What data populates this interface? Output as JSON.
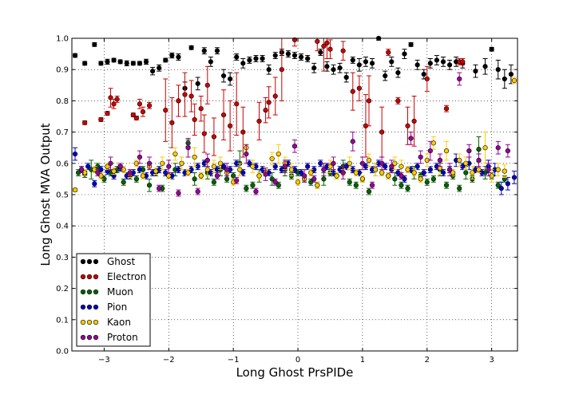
{
  "chart_data": {
    "type": "scatter",
    "xlabel": "Long Ghost PrsPIDe",
    "ylabel": "Long Ghost MVA Output",
    "xlim": [
      -3.5,
      3.4
    ],
    "ylim": [
      0.0,
      1.0
    ],
    "xticks": [
      "−3",
      "−2",
      "−1",
      "0",
      "1",
      "2",
      "3"
    ],
    "yticks": [
      "0.0",
      "0.1",
      "0.2",
      "0.3",
      "0.4",
      "0.5",
      "0.6",
      "0.7",
      "0.8",
      "0.9",
      "1.0"
    ],
    "grid": true,
    "legend_position": "lower-left",
    "series": [
      {
        "name": "Ghost",
        "color": "#000000",
        "x": [
          -3.45,
          -3.3,
          -3.15,
          -3.05,
          -2.95,
          -2.85,
          -2.75,
          -2.65,
          -2.55,
          -2.45,
          -2.35,
          -2.25,
          -2.15,
          -2.05,
          -1.95,
          -1.85,
          -1.75,
          -1.65,
          -1.55,
          -1.45,
          -1.35,
          -1.25,
          -1.15,
          -1.05,
          -0.95,
          -0.85,
          -0.75,
          -0.65,
          -0.55,
          -0.45,
          -0.35,
          -0.25,
          -0.15,
          -0.05,
          0.05,
          0.15,
          0.25,
          0.35,
          0.45,
          0.55,
          0.65,
          0.75,
          0.85,
          0.95,
          1.05,
          1.15,
          1.25,
          1.35,
          1.45,
          1.55,
          1.65,
          1.75,
          1.85,
          1.95,
          2.05,
          2.15,
          2.25,
          2.35,
          2.45,
          2.55,
          2.75,
          2.9,
          3.0,
          3.1,
          3.2,
          3.3
        ],
        "y": [
          0.945,
          0.92,
          0.98,
          0.92,
          0.925,
          0.93,
          0.925,
          0.92,
          0.92,
          0.92,
          0.925,
          0.895,
          0.905,
          0.93,
          0.945,
          0.94,
          0.84,
          0.97,
          0.855,
          0.96,
          0.925,
          0.96,
          0.88,
          0.87,
          0.94,
          0.92,
          0.93,
          0.935,
          0.935,
          0.9,
          0.945,
          0.955,
          0.95,
          0.945,
          0.94,
          0.935,
          0.905,
          0.955,
          0.91,
          0.9,
          0.905,
          0.875,
          0.93,
          0.915,
          0.925,
          0.92,
          1.0,
          0.88,
          0.925,
          0.89,
          0.95,
          0.98,
          0.915,
          0.885,
          0.92,
          0.93,
          0.925,
          0.915,
          0.925,
          0.92,
          0.895,
          0.91,
          0.965,
          0.9,
          0.87,
          0.885
        ],
        "err": [
          0.006,
          0.006,
          0.006,
          0.006,
          0.008,
          0.006,
          0.006,
          0.008,
          0.006,
          0.006,
          0.008,
          0.012,
          0.01,
          0.006,
          0.008,
          0.01,
          0.02,
          0.006,
          0.02,
          0.01,
          0.015,
          0.01,
          0.02,
          0.02,
          0.01,
          0.015,
          0.01,
          0.01,
          0.01,
          0.015,
          0.01,
          0.01,
          0.01,
          0.01,
          0.01,
          0.01,
          0.015,
          0.01,
          0.015,
          0.015,
          0.015,
          0.015,
          0.01,
          0.02,
          0.015,
          0.015,
          0.006,
          0.015,
          0.015,
          0.015,
          0.015,
          0.006,
          0.015,
          0.015,
          0.015,
          0.015,
          0.015,
          0.015,
          0.015,
          0.015,
          0.02,
          0.025,
          0.006,
          0.03,
          0.03,
          0.03
        ]
      },
      {
        "name": "Electron",
        "color": "#cc0000",
        "x": [
          -3.3,
          -3.05,
          -2.95,
          -2.9,
          -2.85,
          -2.8,
          -2.55,
          -2.5,
          -2.45,
          -2.4,
          -2.3,
          -2.05,
          -1.95,
          -1.85,
          -1.75,
          -1.65,
          -1.6,
          -1.5,
          -1.45,
          -1.4,
          -1.3,
          -1.15,
          -1.05,
          -0.95,
          -0.85,
          -0.6,
          -0.5,
          -0.45,
          -0.35,
          -0.25,
          -0.05,
          0.3,
          0.4,
          0.45,
          0.5,
          0.7,
          0.85,
          0.95,
          1.05,
          1.1,
          1.3,
          1.4,
          1.55,
          1.7,
          1.8,
          2.0,
          2.3,
          2.5,
          2.55
        ],
        "y": [
          0.73,
          0.74,
          0.76,
          0.81,
          0.79,
          0.805,
          0.755,
          0.745,
          0.79,
          0.765,
          0.785,
          0.77,
          0.73,
          0.8,
          0.82,
          0.815,
          0.74,
          0.775,
          0.695,
          0.85,
          0.685,
          0.755,
          0.72,
          0.79,
          0.7,
          0.735,
          0.77,
          0.795,
          0.815,
          0.9,
          0.995,
          0.99,
          0.975,
          0.985,
          0.965,
          0.96,
          0.83,
          0.84,
          0.72,
          0.8,
          0.7,
          0.955,
          0.8,
          0.72,
          0.735,
          0.87,
          0.775,
          0.925,
          0.925
        ],
        "err": [
          0.006,
          0.006,
          0.006,
          0.03,
          0.015,
          0.01,
          0.006,
          0.006,
          0.015,
          0.015,
          0.01,
          0.1,
          0.08,
          0.05,
          0.07,
          0.05,
          0.05,
          0.04,
          0.06,
          0.06,
          0.06,
          0.08,
          0.08,
          0.1,
          0.08,
          0.06,
          0.04,
          0.05,
          0.06,
          0.1,
          0.02,
          0.03,
          0.08,
          0.05,
          0.03,
          0.03,
          0.06,
          0.04,
          0.1,
          0.08,
          0.08,
          0.01,
          0.01,
          0.06,
          0.08,
          0.04,
          0.01,
          0.01,
          0.01
        ]
      },
      {
        "name": "Muon",
        "color": "#006600",
        "x": [
          -3.4,
          -3.3,
          -3.2,
          -3.1,
          -3.0,
          -2.9,
          -2.8,
          -2.7,
          -2.6,
          -2.5,
          -2.4,
          -2.3,
          -2.2,
          -2.1,
          -2.0,
          -1.9,
          -1.8,
          -1.7,
          -1.6,
          -1.5,
          -1.4,
          -1.3,
          -1.2,
          -1.1,
          -1.0,
          -0.9,
          -0.8,
          -0.7,
          -0.6,
          -0.5,
          -0.4,
          -0.3,
          -0.2,
          -0.1,
          0.0,
          0.1,
          0.2,
          0.3,
          0.4,
          0.5,
          0.6,
          0.7,
          0.8,
          0.9,
          1.0,
          1.1,
          1.2,
          1.3,
          1.4,
          1.5,
          1.6,
          1.7,
          1.8,
          1.9,
          2.0,
          2.1,
          2.2,
          2.3,
          2.4,
          2.5,
          2.6,
          2.7,
          2.8,
          2.9,
          3.0,
          3.1,
          3.2
        ],
        "y": [
          0.57,
          0.565,
          0.58,
          0.59,
          0.55,
          0.57,
          0.58,
          0.54,
          0.56,
          0.55,
          0.58,
          0.53,
          0.57,
          0.52,
          0.56,
          0.58,
          0.6,
          0.665,
          0.55,
          0.56,
          0.57,
          0.54,
          0.58,
          0.55,
          0.56,
          0.6,
          0.52,
          0.53,
          0.56,
          0.57,
          0.55,
          0.53,
          0.58,
          0.56,
          0.57,
          0.55,
          0.54,
          0.53,
          0.55,
          0.57,
          0.56,
          0.59,
          0.54,
          0.53,
          0.55,
          0.51,
          0.58,
          0.57,
          0.56,
          0.55,
          0.53,
          0.52,
          0.57,
          0.56,
          0.54,
          0.55,
          0.58,
          0.53,
          0.56,
          0.52,
          0.57,
          0.55,
          0.645,
          0.57,
          0.56,
          0.53,
          0.55
        ],
        "err": [
          0.01,
          0.01,
          0.03,
          0.01,
          0.01,
          0.01,
          0.01,
          0.01,
          0.01,
          0.01,
          0.01,
          0.02,
          0.01,
          0.01,
          0.01,
          0.02,
          0.02,
          0.01,
          0.02,
          0.01,
          0.02,
          0.01,
          0.02,
          0.01,
          0.01,
          0.04,
          0.01,
          0.01,
          0.02,
          0.01,
          0.02,
          0.01,
          0.02,
          0.01,
          0.01,
          0.01,
          0.01,
          0.01,
          0.02,
          0.01,
          0.01,
          0.02,
          0.01,
          0.01,
          0.01,
          0.01,
          0.02,
          0.01,
          0.01,
          0.02,
          0.01,
          0.01,
          0.02,
          0.01,
          0.01,
          0.01,
          0.02,
          0.01,
          0.01,
          0.01,
          0.02,
          0.01,
          0.04,
          0.02,
          0.01,
          0.01,
          0.01
        ]
      },
      {
        "name": "Pion",
        "color": "#0000cc",
        "x": [
          -3.45,
          -3.35,
          -3.25,
          -3.15,
          -3.05,
          -2.95,
          -2.85,
          -2.75,
          -2.65,
          -2.55,
          -2.45,
          -2.35,
          -2.25,
          -2.15,
          -2.05,
          -1.95,
          -1.85,
          -1.75,
          -1.65,
          -1.55,
          -1.45,
          -1.35,
          -1.25,
          -1.15,
          -1.05,
          -0.95,
          -0.85,
          -0.75,
          -0.65,
          -0.55,
          -0.45,
          -0.35,
          -0.25,
          -0.15,
          -0.05,
          0.05,
          0.15,
          0.25,
          0.35,
          0.45,
          0.55,
          0.65,
          0.75,
          0.85,
          0.95,
          1.05,
          1.15,
          1.25,
          1.35,
          1.45,
          1.55,
          1.65,
          1.75,
          1.85,
          1.95,
          2.05,
          2.15,
          2.25,
          2.35,
          2.45,
          2.55,
          2.65,
          2.75,
          2.85,
          2.95,
          3.05,
          3.15,
          3.25,
          3.35
        ],
        "y": [
          0.63,
          0.58,
          0.59,
          0.535,
          0.58,
          0.575,
          0.56,
          0.585,
          0.56,
          0.57,
          0.58,
          0.56,
          0.57,
          0.58,
          0.57,
          0.56,
          0.58,
          0.57,
          0.58,
          0.59,
          0.6,
          0.57,
          0.58,
          0.59,
          0.58,
          0.6,
          0.57,
          0.6,
          0.59,
          0.58,
          0.57,
          0.59,
          0.58,
          0.6,
          0.58,
          0.57,
          0.59,
          0.58,
          0.6,
          0.59,
          0.57,
          0.58,
          0.59,
          0.58,
          0.57,
          0.59,
          0.58,
          0.6,
          0.59,
          0.58,
          0.57,
          0.55,
          0.58,
          0.59,
          0.57,
          0.58,
          0.59,
          0.57,
          0.58,
          0.61,
          0.59,
          0.6,
          0.58,
          0.57,
          0.59,
          0.58,
          0.52,
          0.535,
          0.555
        ],
        "err": [
          0.02,
          0.01,
          0.01,
          0.01,
          0.01,
          0.01,
          0.01,
          0.01,
          0.01,
          0.01,
          0.01,
          0.01,
          0.01,
          0.01,
          0.01,
          0.01,
          0.01,
          0.01,
          0.01,
          0.01,
          0.01,
          0.01,
          0.01,
          0.01,
          0.01,
          0.01,
          0.01,
          0.01,
          0.01,
          0.01,
          0.01,
          0.01,
          0.01,
          0.01,
          0.01,
          0.01,
          0.01,
          0.01,
          0.01,
          0.01,
          0.01,
          0.01,
          0.01,
          0.01,
          0.01,
          0.01,
          0.01,
          0.01,
          0.01,
          0.01,
          0.01,
          0.01,
          0.01,
          0.01,
          0.01,
          0.01,
          0.01,
          0.01,
          0.01,
          0.02,
          0.01,
          0.02,
          0.01,
          0.01,
          0.02,
          0.02,
          0.02,
          0.02,
          0.02
        ]
      },
      {
        "name": "Kaon",
        "color": "#ffcc00",
        "x": [
          -3.45,
          -3.3,
          -3.15,
          -3.05,
          -2.95,
          -2.85,
          -2.7,
          -2.6,
          -2.5,
          -2.4,
          -2.3,
          -2.2,
          -2.1,
          -2.0,
          -1.9,
          -1.8,
          -1.7,
          -1.6,
          -1.5,
          -1.4,
          -1.3,
          -1.2,
          -1.1,
          -1.0,
          -0.9,
          -0.8,
          -0.7,
          -0.6,
          -0.5,
          -0.4,
          -0.3,
          -0.2,
          -0.1,
          0.0,
          0.1,
          0.2,
          0.3,
          0.4,
          0.5,
          0.6,
          0.7,
          0.8,
          0.9,
          1.0,
          1.1,
          1.2,
          1.3,
          1.4,
          1.5,
          1.6,
          1.7,
          1.8,
          1.9,
          2.0,
          2.1,
          2.2,
          2.3,
          2.4,
          2.5,
          2.6,
          2.7,
          2.8,
          2.9,
          3.0,
          3.1,
          3.2,
          3.35
        ],
        "y": [
          0.515,
          0.57,
          0.58,
          0.56,
          0.59,
          0.575,
          0.58,
          0.565,
          0.6,
          0.56,
          0.59,
          0.575,
          0.6,
          0.56,
          0.63,
          0.6,
          0.57,
          0.62,
          0.56,
          0.58,
          0.59,
          0.6,
          0.57,
          0.54,
          0.58,
          0.65,
          0.59,
          0.56,
          0.57,
          0.615,
          0.63,
          0.6,
          0.58,
          0.54,
          0.55,
          0.57,
          0.53,
          0.58,
          0.59,
          0.56,
          0.57,
          0.6,
          0.57,
          0.55,
          0.61,
          0.58,
          0.57,
          0.56,
          0.6,
          0.59,
          0.58,
          0.57,
          0.55,
          0.61,
          0.665,
          0.585,
          0.64,
          0.57,
          0.61,
          0.6,
          0.57,
          0.58,
          0.65,
          0.56,
          0.58,
          0.575,
          0.865
        ],
        "err": [
          0.006,
          0.01,
          0.01,
          0.01,
          0.01,
          0.01,
          0.01,
          0.01,
          0.01,
          0.01,
          0.01,
          0.01,
          0.02,
          0.01,
          0.02,
          0.02,
          0.01,
          0.03,
          0.01,
          0.02,
          0.02,
          0.02,
          0.01,
          0.01,
          0.02,
          0.01,
          0.02,
          0.01,
          0.01,
          0.02,
          0.03,
          0.02,
          0.02,
          0.01,
          0.01,
          0.01,
          0.01,
          0.02,
          0.02,
          0.01,
          0.01,
          0.02,
          0.01,
          0.01,
          0.02,
          0.02,
          0.01,
          0.01,
          0.02,
          0.02,
          0.01,
          0.01,
          0.01,
          0.02,
          0.02,
          0.02,
          0.03,
          0.01,
          0.02,
          0.02,
          0.02,
          0.01,
          0.05,
          0.02,
          0.02,
          0.02,
          0.01
        ]
      },
      {
        "name": "Proton",
        "color": "#990099",
        "x": [
          -3.35,
          -3.1,
          -2.9,
          -2.75,
          -2.6,
          -2.45,
          -2.3,
          -2.15,
          -2.0,
          -1.85,
          -1.7,
          -1.55,
          -1.4,
          -1.25,
          -1.1,
          -0.95,
          -0.8,
          -0.65,
          -0.5,
          -0.35,
          -0.2,
          -0.05,
          0.1,
          0.25,
          0.4,
          0.55,
          0.7,
          0.85,
          1.0,
          1.15,
          1.3,
          1.45,
          1.6,
          1.75,
          1.9,
          2.05,
          2.2,
          2.35,
          2.5,
          2.65,
          2.8,
          2.95,
          3.1,
          3.25
        ],
        "y": [
          0.58,
          0.57,
          0.6,
          0.59,
          0.57,
          0.62,
          0.6,
          0.52,
          0.59,
          0.505,
          0.65,
          0.51,
          0.61,
          0.56,
          0.58,
          0.545,
          0.63,
          0.51,
          0.565,
          0.54,
          0.59,
          0.655,
          0.56,
          0.55,
          0.58,
          0.6,
          0.57,
          0.67,
          0.6,
          0.53,
          0.6,
          0.59,
          0.56,
          0.68,
          0.62,
          0.64,
          0.61,
          0.58,
          0.87,
          0.64,
          0.61,
          0.58,
          0.65,
          0.64
        ],
        "err": [
          0.01,
          0.01,
          0.02,
          0.01,
          0.01,
          0.02,
          0.02,
          0.01,
          0.02,
          0.01,
          0.03,
          0.01,
          0.02,
          0.01,
          0.02,
          0.01,
          0.03,
          0.01,
          0.02,
          0.01,
          0.02,
          0.02,
          0.02,
          0.01,
          0.02,
          0.02,
          0.02,
          0.03,
          0.02,
          0.01,
          0.02,
          0.02,
          0.01,
          0.02,
          0.02,
          0.03,
          0.02,
          0.02,
          0.02,
          0.02,
          0.02,
          0.02,
          0.02,
          0.02
        ]
      }
    ]
  }
}
